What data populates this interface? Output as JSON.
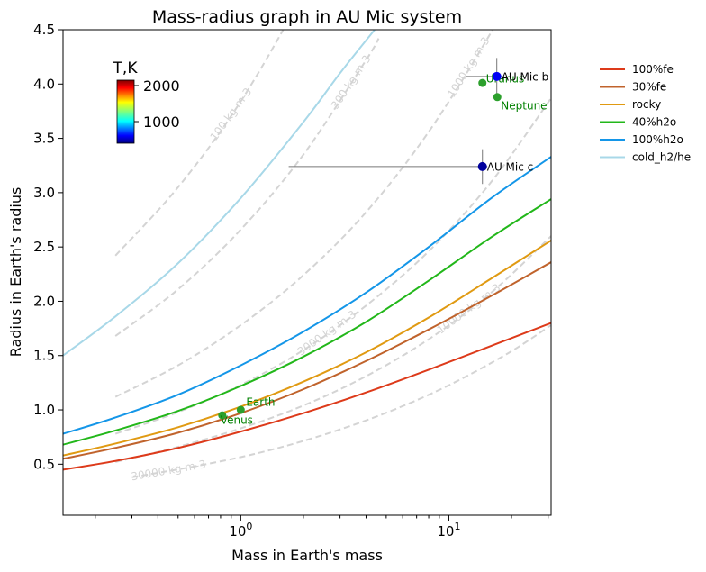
{
  "chart_data": {
    "type": "line",
    "title": "Mass-radius graph in AU Mic system",
    "xlabel": "Mass in Earth's mass",
    "ylabel": "Radius in Earth's radius",
    "xscale": "log",
    "xlim": [
      0.14,
      31
    ],
    "ylim": [
      0.03,
      4.5
    ],
    "xticks": [
      {
        "value": 1,
        "base": "10",
        "exp": "0"
      },
      {
        "value": 10,
        "base": "10",
        "exp": "1"
      }
    ],
    "yticks": [
      "0.5",
      "1.0",
      "1.5",
      "2.0",
      "2.5",
      "3.0",
      "3.5",
      "4.0",
      "4.5"
    ],
    "series": [
      {
        "name": "100%fe",
        "color": "#dd3a1a",
        "x": [
          0.14,
          0.25,
          0.5,
          1,
          2,
          4,
          8,
          16,
          31
        ],
        "y": [
          0.45,
          0.53,
          0.65,
          0.8,
          0.97,
          1.16,
          1.37,
          1.59,
          1.8
        ]
      },
      {
        "name": "30%fe",
        "color": "#c0632c",
        "x": [
          0.14,
          0.25,
          0.5,
          1,
          2,
          4,
          8,
          16,
          31
        ],
        "y": [
          0.55,
          0.65,
          0.79,
          0.97,
          1.19,
          1.45,
          1.74,
          2.05,
          2.36
        ]
      },
      {
        "name": "rocky",
        "color": "#e09a12",
        "x": [
          0.14,
          0.25,
          0.5,
          1,
          2,
          4,
          8,
          16,
          31
        ],
        "y": [
          0.58,
          0.69,
          0.84,
          1.03,
          1.26,
          1.53,
          1.85,
          2.21,
          2.56
        ]
      },
      {
        "name": "40%h2o",
        "color": "#22b71a",
        "x": [
          0.14,
          0.25,
          0.5,
          1,
          2,
          4,
          8,
          16,
          31
        ],
        "y": [
          0.68,
          0.81,
          0.99,
          1.22,
          1.49,
          1.81,
          2.19,
          2.59,
          2.94
        ]
      },
      {
        "name": "100%h2o",
        "color": "#1496e8",
        "x": [
          0.14,
          0.25,
          0.5,
          1,
          2,
          4,
          8,
          16,
          31
        ],
        "y": [
          0.78,
          0.93,
          1.14,
          1.41,
          1.72,
          2.08,
          2.5,
          2.95,
          3.33
        ]
      },
      {
        "name": "cold_h2/he",
        "color": "#a8d8e8",
        "x": [
          0.14,
          0.25,
          0.5,
          1,
          2,
          3,
          4.4
        ],
        "y": [
          1.5,
          1.86,
          2.35,
          2.95,
          3.65,
          4.1,
          4.5
        ]
      }
    ],
    "density_lines": [
      {
        "label": "100 kg m-3",
        "x": [
          0.25,
          0.5,
          1,
          2,
          3.1
        ],
        "y": [
          2.42,
          3.05,
          3.84,
          4.84,
          5.6
        ]
      },
      {
        "label": "300 kg m-3",
        "x": [
          0.25,
          0.5,
          1,
          2,
          4,
          4.6
        ],
        "y": [
          1.68,
          2.11,
          2.66,
          3.35,
          4.22,
          4.42
        ]
      },
      {
        "label": "1000 kg m-3",
        "x": [
          0.25,
          0.5,
          1,
          2,
          4,
          8,
          16,
          24
        ],
        "y": [
          1.12,
          1.41,
          1.78,
          2.24,
          2.82,
          3.56,
          4.48,
          5.13
        ]
      },
      {
        "label": "3000 kg m-3",
        "x": [
          0.25,
          0.5,
          1,
          2,
          4,
          8,
          16,
          31
        ],
        "y": [
          0.78,
          0.98,
          1.23,
          1.55,
          1.96,
          2.46,
          3.1,
          3.87
        ]
      },
      {
        "label": "10000 kg m-3",
        "x": [
          0.25,
          0.5,
          1,
          2,
          4,
          8,
          16,
          31
        ],
        "y": [
          0.52,
          0.66,
          0.83,
          1.04,
          1.31,
          1.65,
          2.08,
          2.6
        ]
      },
      {
        "label": "30000 kg m-3",
        "x": [
          0.3,
          0.6,
          1.2,
          2.4,
          4.8,
          9.6,
          19.2,
          31
        ],
        "y": [
          0.38,
          0.48,
          0.6,
          0.76,
          0.96,
          1.21,
          1.52,
          1.78
        ]
      }
    ],
    "solar_system": [
      {
        "name": "Earth",
        "x": 1.0,
        "y": 1.0,
        "color": "#2ca02c"
      },
      {
        "name": "Venus",
        "x": 0.815,
        "y": 0.95,
        "color": "#2ca02c"
      },
      {
        "name": "Uranus",
        "x": 14.5,
        "y": 4.01,
        "color": "#2ca02c"
      },
      {
        "name": "Neptune",
        "x": 17.1,
        "y": 3.88,
        "color": "#2ca02c"
      }
    ],
    "planets": [
      {
        "name": "AU Mic b",
        "x": 17,
        "y": 4.07,
        "xerr": [
          5,
          0.5
        ],
        "yerr": [
          0.17,
          0.17
        ],
        "temperature_K": 600
      },
      {
        "name": "AU Mic c",
        "x": 14.5,
        "y": 3.24,
        "xerr": [
          12.8,
          0.8
        ],
        "yerr": [
          0.16,
          0.16
        ],
        "temperature_K": 450
      }
    ],
    "colorbar": {
      "label": "T,K",
      "ticks": [
        "1000",
        "2000"
      ],
      "tick_values": [
        1000,
        2000
      ],
      "range": [
        400,
        2150
      ],
      "colormap": "jet"
    },
    "legend_placement": "outside right",
    "grid": false
  }
}
